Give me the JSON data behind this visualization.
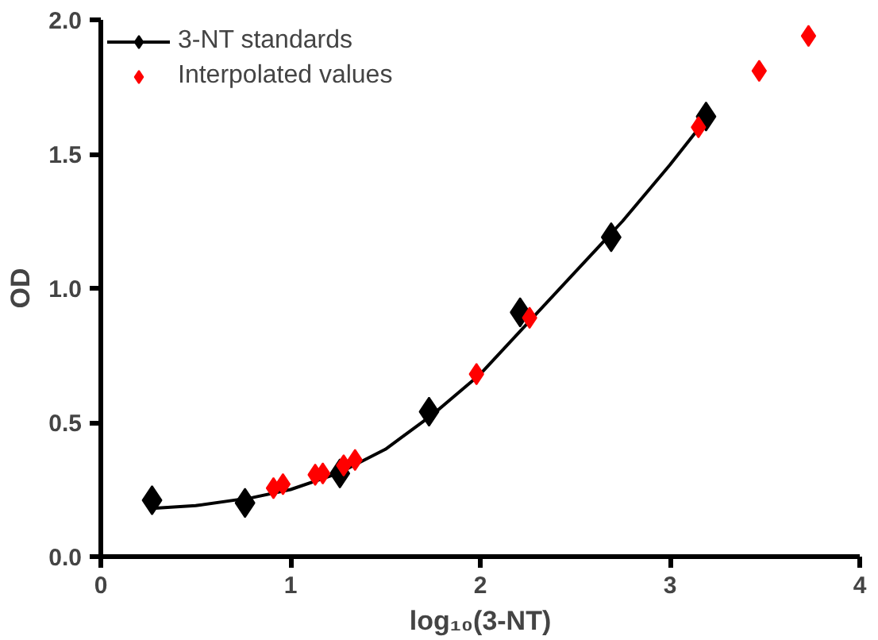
{
  "chart_data": {
    "type": "scatter",
    "xlabel": "log₁₀(3-NT)",
    "ylabel": "OD",
    "xlim": [
      0,
      4
    ],
    "ylim": [
      0,
      2.0
    ],
    "xticks": [
      0,
      1,
      2,
      3,
      4
    ],
    "yticks": [
      {
        "value": 0,
        "label": "0.0"
      },
      {
        "value": 0.5,
        "label": "0.5"
      },
      {
        "value": 1.0,
        "label": "1.0"
      },
      {
        "value": 1.5,
        "label": "1.5"
      },
      {
        "value": 2.0,
        "label": "2.0"
      }
    ],
    "grid": false,
    "legend": "top left",
    "marker": "diamond",
    "series": [
      {
        "type": "line",
        "color": "#000000",
        "marker": "none",
        "x": [
          0.27,
          0.5,
          0.8,
          1.0,
          1.25,
          1.5,
          1.75,
          2.0,
          2.25,
          2.5,
          2.75,
          3.0,
          3.19
        ],
        "values": [
          0.18,
          0.19,
          0.22,
          0.25,
          0.31,
          0.4,
          0.53,
          0.68,
          0.87,
          1.06,
          1.25,
          1.46,
          1.63
        ]
      },
      {
        "name": "3-NT standards",
        "color": "#000000",
        "x": [
          0.27,
          0.76,
          1.26,
          1.73,
          2.21,
          2.69,
          3.19
        ],
        "values": [
          0.21,
          0.2,
          0.31,
          0.54,
          0.91,
          1.19,
          1.64
        ]
      },
      {
        "name": "Interpolated values",
        "color": "#ff0000",
        "x": [
          0.91,
          0.96,
          1.13,
          1.17,
          1.28,
          1.34,
          1.98,
          2.26,
          3.15,
          3.47,
          3.73
        ],
        "values": [
          0.255,
          0.27,
          0.305,
          0.31,
          0.34,
          0.36,
          0.68,
          0.89,
          1.6,
          1.81,
          1.94
        ]
      }
    ]
  }
}
